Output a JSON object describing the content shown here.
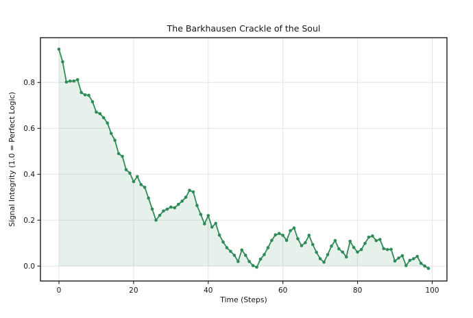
{
  "figure": {
    "background": "#ffffff"
  },
  "chart_data": {
    "type": "line",
    "title": "The Barkhausen Crackle of the Soul",
    "xlabel": "Time (Steps)",
    "ylabel": "Signal Integrity (1.0 = Perfect Logic)",
    "legend": null,
    "grid": true,
    "style": {
      "line_color": "#2e8b57",
      "marker": "circle",
      "marker_color": "#2e8b57",
      "fill_under_curve": true,
      "fill_color": "rgba(46,139,87,0.12)",
      "grid_color": "#e4e4e4",
      "spine_color": "#1a1a1a",
      "text_color": "#141414"
    },
    "xlim": [
      -4.95,
      103.95
    ],
    "ylim": [
      -0.065,
      0.995
    ],
    "x_ticks": [
      0,
      20,
      40,
      60,
      80,
      100
    ],
    "x_tick_labels": [
      "0",
      "20",
      "40",
      "60",
      "80",
      "100"
    ],
    "y_ticks": [
      0.0,
      0.2,
      0.4,
      0.6,
      0.8
    ],
    "y_tick_labels": [
      "0.0",
      "0.2",
      "0.4",
      "0.6",
      "0.8"
    ],
    "x": [
      0,
      1,
      2,
      3,
      4,
      5,
      6,
      7,
      8,
      9,
      10,
      11,
      12,
      13,
      14,
      15,
      16,
      17,
      18,
      19,
      20,
      21,
      22,
      23,
      24,
      25,
      26,
      27,
      28,
      29,
      30,
      31,
      32,
      33,
      34,
      35,
      36,
      37,
      38,
      39,
      40,
      41,
      42,
      43,
      44,
      45,
      46,
      47,
      48,
      49,
      50,
      51,
      52,
      53,
      54,
      55,
      56,
      57,
      58,
      59,
      60,
      61,
      62,
      63,
      64,
      65,
      66,
      67,
      68,
      69,
      70,
      71,
      72,
      73,
      74,
      75,
      76,
      77,
      78,
      79,
      80,
      81,
      82,
      83,
      84,
      85,
      86,
      87,
      88,
      89,
      90,
      91,
      92,
      93,
      94,
      95,
      96,
      97,
      98,
      99
    ],
    "y": [
      0.945,
      0.89,
      0.802,
      0.806,
      0.806,
      0.812,
      0.756,
      0.746,
      0.744,
      0.716,
      0.671,
      0.664,
      0.646,
      0.623,
      0.578,
      0.548,
      0.49,
      0.478,
      0.42,
      0.405,
      0.368,
      0.39,
      0.355,
      0.343,
      0.296,
      0.248,
      0.2,
      0.221,
      0.24,
      0.248,
      0.257,
      0.254,
      0.269,
      0.283,
      0.3,
      0.33,
      0.323,
      0.264,
      0.225,
      0.184,
      0.22,
      0.17,
      0.186,
      0.135,
      0.105,
      0.08,
      0.064,
      0.047,
      0.02,
      0.07,
      0.047,
      0.02,
      0.002,
      -0.005,
      0.03,
      0.05,
      0.08,
      0.112,
      0.136,
      0.142,
      0.134,
      0.112,
      0.154,
      0.166,
      0.119,
      0.089,
      0.102,
      0.134,
      0.094,
      0.06,
      0.032,
      0.017,
      0.05,
      0.087,
      0.111,
      0.075,
      0.061,
      0.04,
      0.108,
      0.081,
      0.061,
      0.072,
      0.099,
      0.126,
      0.131,
      0.111,
      0.116,
      0.076,
      0.072,
      0.073,
      0.022,
      0.035,
      0.045,
      0.002,
      0.025,
      0.032,
      0.042,
      0.012,
      0.0,
      -0.01
    ]
  }
}
